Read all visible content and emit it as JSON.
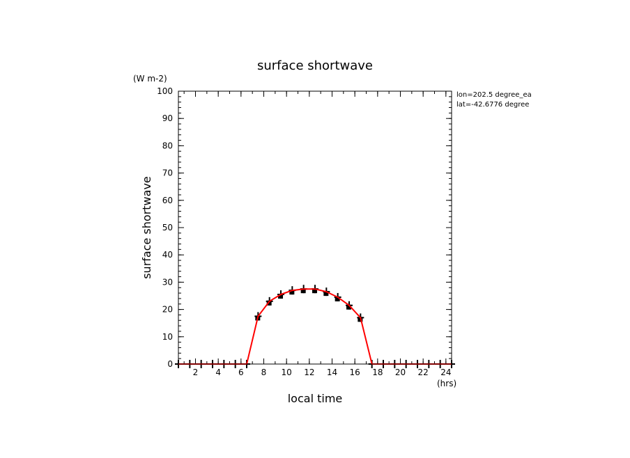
{
  "chart_data": {
    "type": "line",
    "title": "surface shortwave",
    "units_label": "(W m-2)",
    "xlabel": "local time",
    "xunits_label": "(hrs)",
    "ylabel": "surface shortwave",
    "xlim": [
      0.5,
      24.5
    ],
    "ylim": [
      0,
      100
    ],
    "xticks": [
      2,
      4,
      6,
      8,
      10,
      12,
      14,
      16,
      18,
      20,
      22,
      24
    ],
    "yticks": [
      0,
      10,
      20,
      30,
      40,
      50,
      60,
      70,
      80,
      90,
      100
    ],
    "grid": false,
    "legend": "none",
    "annotations": [
      "lon=202.5 degree_ea",
      "lat=-42.6776 degree"
    ],
    "series": [
      {
        "style": "red-line",
        "color": "#ff0000",
        "x": [
          0.5,
          1.5,
          2.5,
          3.5,
          4.5,
          5.5,
          6.5,
          7.5,
          8.5,
          9.5,
          10.5,
          11.5,
          12.5,
          13.5,
          14.5,
          15.5,
          16.5,
          17.5,
          18.5,
          19.5,
          20.5,
          21.5,
          22.5,
          23.5,
          24.5
        ],
        "y": [
          0,
          0,
          0,
          0,
          0,
          0,
          0,
          17.5,
          23,
          25.5,
          27,
          27.5,
          27.5,
          26.5,
          24.5,
          21.5,
          17,
          0,
          0,
          0,
          0,
          0,
          0,
          0,
          0
        ]
      },
      {
        "style": "black-cross-markers",
        "color": "#000000",
        "x": [
          0.5,
          1.5,
          2.5,
          3.5,
          4.5,
          5.5,
          6.5,
          7.5,
          8.5,
          9.5,
          10.5,
          11.5,
          12.5,
          13.5,
          14.5,
          15.5,
          16.5,
          17.5,
          18.5,
          19.5,
          20.5,
          21.5,
          22.5,
          23.5,
          24.5
        ],
        "y": [
          0,
          0,
          0,
          0,
          0,
          0,
          0,
          17.5,
          23,
          25.5,
          27,
          27.5,
          27.5,
          26.5,
          24.5,
          21.5,
          17,
          0,
          0,
          0,
          0,
          0,
          0,
          0,
          0
        ]
      }
    ]
  }
}
